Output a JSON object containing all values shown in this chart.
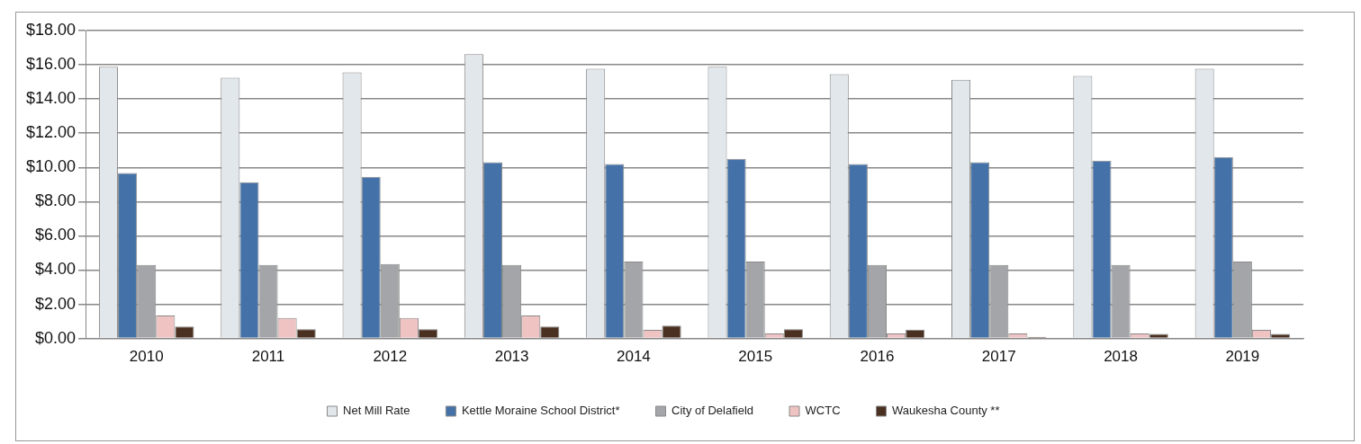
{
  "chart_data": {
    "type": "bar",
    "categories": [
      "2010",
      "2011",
      "2012",
      "2013",
      "2014",
      "2015",
      "2016",
      "2017",
      "2018",
      "2019"
    ],
    "series": [
      {
        "name": "Net Mill Rate",
        "color": "#e2e7ec",
        "values": [
          15.88,
          15.24,
          15.56,
          16.62,
          15.77,
          15.88,
          15.45,
          15.13,
          15.35,
          15.77
        ]
      },
      {
        "name": "Kettle Moraine School District*",
        "color": "#4472a8",
        "values": [
          9.67,
          9.13,
          9.45,
          10.3,
          10.2,
          10.5,
          10.2,
          10.3,
          10.4,
          10.6
        ]
      },
      {
        "name": "City of Delafield",
        "color": "#a3a5a8",
        "values": [
          4.3,
          4.3,
          4.35,
          4.3,
          4.5,
          4.5,
          4.3,
          4.3,
          4.3,
          4.5
        ]
      },
      {
        "name": "WCTC",
        "color": "#f0c3c3",
        "values": [
          1.35,
          1.2,
          1.2,
          1.35,
          0.5,
          0.3,
          0.3,
          0.3,
          0.3,
          0.5
        ]
      },
      {
        "name": "Waukesha County **",
        "color": "#4a3020",
        "values": [
          0.7,
          0.55,
          0.55,
          0.7,
          0.75,
          0.55,
          0.5,
          0.1,
          0.27,
          0.27
        ]
      }
    ],
    "ylim": [
      0,
      18
    ],
    "yticks": [
      {
        "value": 0,
        "label": "$0.00"
      },
      {
        "value": 2,
        "label": "$2.00"
      },
      {
        "value": 4,
        "label": "$4.00"
      },
      {
        "value": 6,
        "label": "$6.00"
      },
      {
        "value": 8,
        "label": "$8.00"
      },
      {
        "value": 10,
        "label": "$10.00"
      },
      {
        "value": 12,
        "label": "$12.00"
      },
      {
        "value": 14,
        "label": "$14.00"
      },
      {
        "value": 16,
        "label": "$16.00"
      },
      {
        "value": 18,
        "label": "$18.00"
      }
    ],
    "grid": "y",
    "legend": "bottom"
  }
}
